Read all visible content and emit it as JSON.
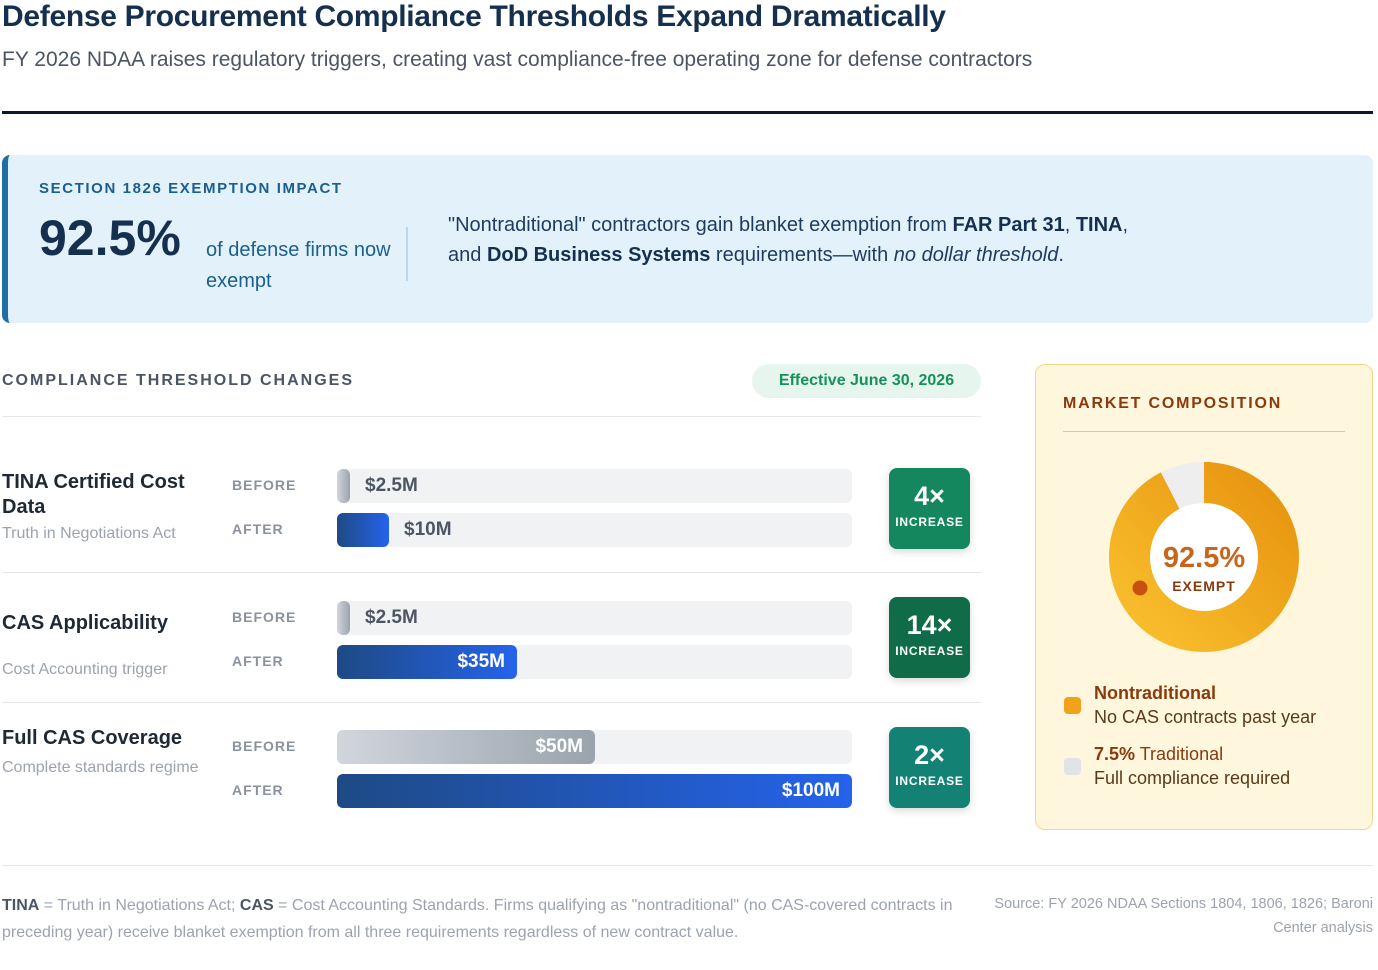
{
  "header": {
    "title": "Defense Procurement Compliance Thresholds Expand Dramatically",
    "subtitle": "FY 2026 NDAA raises regulatory triggers, creating vast compliance-free operating zone for defense contractors"
  },
  "impact": {
    "label": "SECTION 1826 EXEMPTION IMPACT",
    "big_value": "92.5%",
    "firms_text": "of defense firms now exempt",
    "desc_1": "\"Nontraditional\" contractors gain blanket exemption from ",
    "desc_b1": "FAR Part 31",
    "desc_2": ", ",
    "desc_b2": "TINA",
    "desc_3": ", and ",
    "desc_b3": "DoD Business Systems",
    "desc_4": " requirements—with ",
    "desc_i1": "no dollar threshold",
    "desc_5": "."
  },
  "thresholds": {
    "heading": "COMPLIANCE THRESHOLD CHANGES",
    "effective": "Effective June 30, 2026",
    "before_label": "BEFORE",
    "after_label": "AFTER",
    "increase_label": "INCREASE"
  },
  "chart_data": {
    "type": "bar",
    "title": "Compliance Threshold Changes",
    "units": "$M",
    "xlim": [
      0,
      100
    ],
    "categories": [
      "TINA Certified Cost Data",
      "CAS Applicability",
      "Full CAS Coverage"
    ],
    "subtitles": [
      "Truth in Negotiations Act",
      "Cost Accounting trigger",
      "Complete standards regime"
    ],
    "series": [
      {
        "name": "BEFORE",
        "values": [
          2.5,
          2.5,
          50
        ],
        "labels": [
          "$2.5M",
          "$2.5M",
          "$50M"
        ]
      },
      {
        "name": "AFTER",
        "values": [
          10,
          35,
          100
        ],
        "labels": [
          "$10M",
          "$35M",
          "$100M"
        ]
      }
    ],
    "multipliers": [
      "4×",
      "14×",
      "2×"
    ],
    "multiplier_colors": [
      "#14875f",
      "#0f6b48",
      "#138275"
    ]
  },
  "market": {
    "title": "MARKET COMPOSITION",
    "center_value": "92.5%",
    "center_label": "EXEMPT",
    "nontraditional_pct": 92.5,
    "traditional_pct": 7.5,
    "nontraditional_name": "Nontraditional",
    "nontraditional_desc": "No CAS contracts past year",
    "traditional_value": "7.5%",
    "traditional_name": "Traditional",
    "traditional_desc": "Full compliance required",
    "colors": {
      "exempt": "#f0a21a",
      "traditional": "#eeeeee"
    }
  },
  "footer": {
    "tina_abbr": "TINA",
    "tina_def": " = Truth in Negotiations Act; ",
    "cas_abbr": "CAS",
    "cas_def": " = Cost Accounting Standards. Firms qualifying as \"nontraditional\" (no CAS-covered contracts in preceding year) receive blanket exemption from all three requirements regardless of new contract value.",
    "source": "Source: FY 2026 NDAA Sections 1804, 1806, 1826; Baroni Center analysis"
  }
}
